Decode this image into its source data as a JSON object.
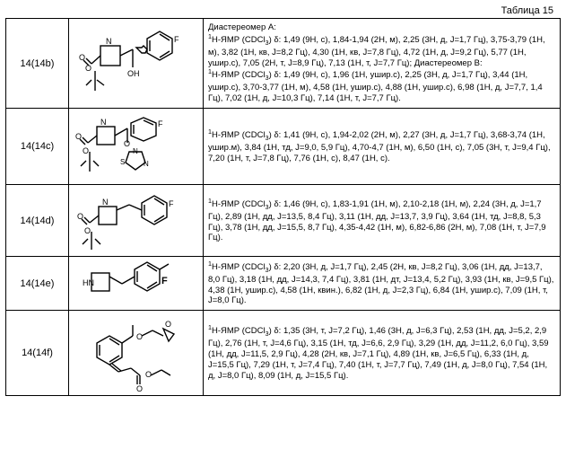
{
  "caption": "Таблица 15",
  "rows": [
    {
      "id": "14(14b)",
      "nmr": "Диастереомер А:\n<sup>1</sup>H-ЯМР (CDCl<sub>3</sub>) δ: 1,49 (9H, с), 1,84-1,94 (2H, м), 2,25 (3H, д, J=1,7 Гц), 3,75-3,79 (1H, м), 3,82 (1H, кв, J=8,2 Гц), 4,30 (1H, кв, J=7,8 Гц), 4,72 (1H, д, J=9,2 Гц), 5,77 (1H, ушир.с), 7,05 (2H, т, J=8,9 Гц), 7,13 (1H, т, J=7,7 Гц); Диастереомер В:\n<sup>1</sup>H-ЯМР (CDCl<sub>3</sub>) δ: 1,49 (9H, с), 1,96 (1H, ушир.с), 2,25 (3H, д, J=1,7 Гц), 3,44 (1H, ушир.с), 3,70-3,77 (1H, м), 4,58 (1H, ушир.с), 4,88 (1H, ушир.с), 6,98 (1H, д, J=7,7, 1,4 Гц), 7,02 (1H, д, J=10,3 Гц), 7,14 (1H, т, J=7,7 Гц)."
    },
    {
      "id": "14(14c)",
      "nmr": "<sup>1</sup>H-ЯМР (CDCl<sub>3</sub>) δ: 1,41 (9H, с), 1,94-2,02 (2H, м), 2,27 (3H, д, J=1,7 Гц), 3,68-3,74 (1H, ушир.м), 3,84 (1H, тд, J=9,0, 5,9 Гц), 4,70-4,7 (1H, м), 6,50 (1H, с), 7,05 (3H, т, J=9,4 Гц), 7,20 (1H, т, J=7,8 Гц), 7,76 (1H, с), 8,47 (1H, с)."
    },
    {
      "id": "14(14d)",
      "nmr": "<sup>1</sup>H-ЯМР (CDCl<sub>3</sub>) δ: 1,46 (9H, с), 1,83-1,91 (1H, м), 2,10-2,18 (1H, м), 2,24 (3H, д, J=1,7 Гц), 2,89 (1H, дд, J=13,5, 8,4 Гц), 3,11 (1H, дд, J=13,7, 3,9 Гц), 3,64 (1H, тд, J=8,8, 5,3 Гц), 3,78 (1H, дд, J=15,5, 8,7 Гц), 4,35-4,42 (1H, м), 6,82-6,86 (2H, м), 7,08 (1H, т, J=7,9 Гц)."
    },
    {
      "id": "14(14e)",
      "nmr": "<sup>1</sup>H-ЯМР (CDCl<sub>3</sub>) δ: 2,20 (3H, д, J=1,7 Гц), 2,45 (2H, кв, J=8,2 Гц), 3,06 (1H, дд, J=13,7, 8,0 Гц), 3,18 (1H, дд, J=14,3, 7,4 Гц), 3,81 (1H, дт, J=13,4, 5,2 Гц), 3,93 (1H, кв, J=9,5 Гц), 4,38 (1H, ушир.с), 4,58 (1H, квин.), 6,82 (1H, д, J=2,3 Гц), 6,84 (1H, ушир.с), 7,09 (1H, т, J=8,0 Гц)."
    },
    {
      "id": "14(14f)",
      "nmr": "<sup>1</sup>H-ЯМР (CDCl<sub>3</sub>) δ: 1,35 (3H, т, J=7,2 Гц), 1,46 (3H, д, J=6,3 Гц), 2,53 (1H, дд, J=5,2, 2,9 Гц), 2,76 (1H, т, J=4,6 Гц), 3,15 (1H, тд, J=6,6, 2,9 Гц), 3,29 (1H, дд, J=11,2, 6,0 Гц), 3,59 (1H, дд, J=11,5, 2,9 Гц), 4,28 (2H, кв, J=7,1 Гц), 4,89 (1H, кв, J=6,5 Гц), 6,33 (1H, д, J=15,5 Гц), 7,29 (1H, т, J=7,4 Гц), 7,40 (1H, т, J=7,7 Гц), 7,49 (1H, д, J=8,0 Гц), 7,54 (1H, д, J=8,0 Гц), 8,09 (1H, д, J=15,5 Гц)."
    }
  ],
  "colors": {
    "bg": "#ffffff",
    "border": "#000000",
    "text": "#000000",
    "stroke": "#000000"
  }
}
